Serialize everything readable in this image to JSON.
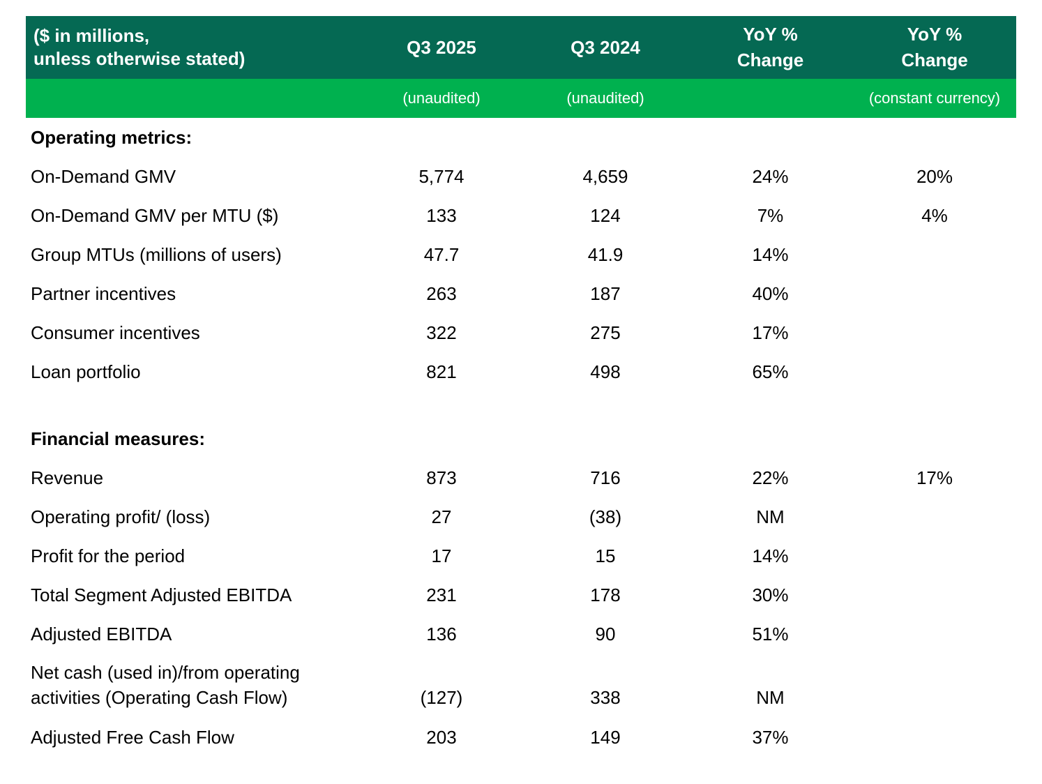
{
  "table": {
    "colors": {
      "header_background": "#056953",
      "subheader_background": "#00B14F",
      "header_text": "#FFFFFF",
      "body_text": "#000000",
      "page_background": "#FFFFFF"
    },
    "header": {
      "title": "($ in millions,\nunless otherwise stated)",
      "columns": [
        {
          "label": "Q3 2025",
          "sublabel": "(unaudited)"
        },
        {
          "label": "Q3 2024",
          "sublabel": "(unaudited)"
        },
        {
          "label": "YoY %\nChange",
          "sublabel": ""
        },
        {
          "label": "YoY %\nChange",
          "sublabel": "(constant currency)"
        }
      ]
    },
    "rows": [
      {
        "type": "section",
        "label": "Operating metrics:"
      },
      {
        "type": "data",
        "label": "On-Demand GMV",
        "values": [
          "5,774",
          "4,659",
          "24%",
          "20%"
        ]
      },
      {
        "type": "data",
        "label": "On-Demand GMV per MTU ($)",
        "values": [
          "133",
          "124",
          "7%",
          "4%"
        ]
      },
      {
        "type": "data",
        "label": "Group MTUs (millions of users)",
        "values": [
          "47.7",
          "41.9",
          "14%",
          ""
        ]
      },
      {
        "type": "data",
        "label": "Partner incentives",
        "values": [
          "263",
          "187",
          "40%",
          ""
        ]
      },
      {
        "type": "data",
        "label": "Consumer incentives",
        "values": [
          "322",
          "275",
          "17%",
          ""
        ]
      },
      {
        "type": "data",
        "label": "Loan portfolio",
        "values": [
          "821",
          "498",
          "65%",
          ""
        ]
      },
      {
        "type": "spacer"
      },
      {
        "type": "section",
        "label": "Financial measures:"
      },
      {
        "type": "data",
        "label": "Revenue",
        "values": [
          "873",
          "716",
          "22%",
          "17%"
        ]
      },
      {
        "type": "data",
        "label": "Operating profit/ (loss)",
        "values": [
          "27",
          "(38)",
          "NM",
          ""
        ]
      },
      {
        "type": "data",
        "label": "Profit for the period",
        "values": [
          "17",
          "15",
          "14%",
          ""
        ]
      },
      {
        "type": "data",
        "label": "Total Segment Adjusted EBITDA",
        "values": [
          "231",
          "178",
          "30%",
          ""
        ]
      },
      {
        "type": "data",
        "label": "Adjusted EBITDA",
        "values": [
          "136",
          "90",
          "51%",
          ""
        ]
      },
      {
        "type": "data",
        "label": "Net cash (used in)/from operating\nactivities (Operating Cash Flow)",
        "values": [
          "(127)",
          "338",
          "NM",
          ""
        ],
        "tall": true
      },
      {
        "type": "data",
        "label": "Adjusted Free Cash Flow",
        "values": [
          "203",
          "149",
          "37%",
          ""
        ]
      }
    ]
  }
}
